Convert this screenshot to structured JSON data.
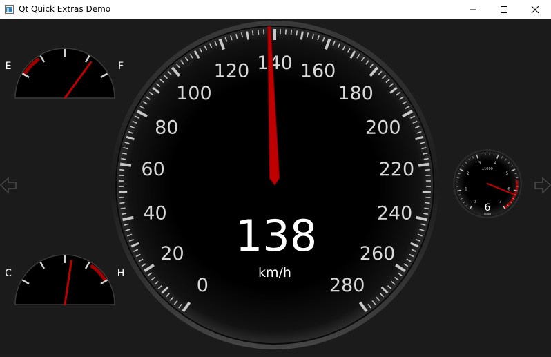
{
  "window": {
    "title": "Qt Quick Extras Demo"
  },
  "controls": {
    "minimize": "minimize",
    "maximize": "maximize",
    "close": "close"
  },
  "colors": {
    "background": "#1b1b1b",
    "needle": "#c00000",
    "redzone": "#a00000",
    "tick": "#c8c8c8"
  },
  "speedometer": {
    "labels": [
      "0",
      "20",
      "40",
      "60",
      "80",
      "100",
      "120",
      "140",
      "160",
      "180",
      "200",
      "220",
      "240",
      "260",
      "280"
    ],
    "value": 138,
    "value_text": "138",
    "unit": "km/h"
  },
  "fuel_gauge": {
    "empty_label": "E",
    "full_label": "F",
    "level": 0.8
  },
  "temp_gauge": {
    "cold_label": "C",
    "hot_label": "H",
    "level": 0.57
  },
  "tachometer": {
    "labels": [
      "0",
      "1",
      "2",
      "3",
      "4",
      "5",
      "6",
      "7"
    ],
    "multiplier": "x1000",
    "value_text": "6",
    "unit": "RPM",
    "value": 6.2
  },
  "nav": {
    "left_arrow": "left-arrow-icon",
    "right_arrow": "right-arrow-icon"
  }
}
